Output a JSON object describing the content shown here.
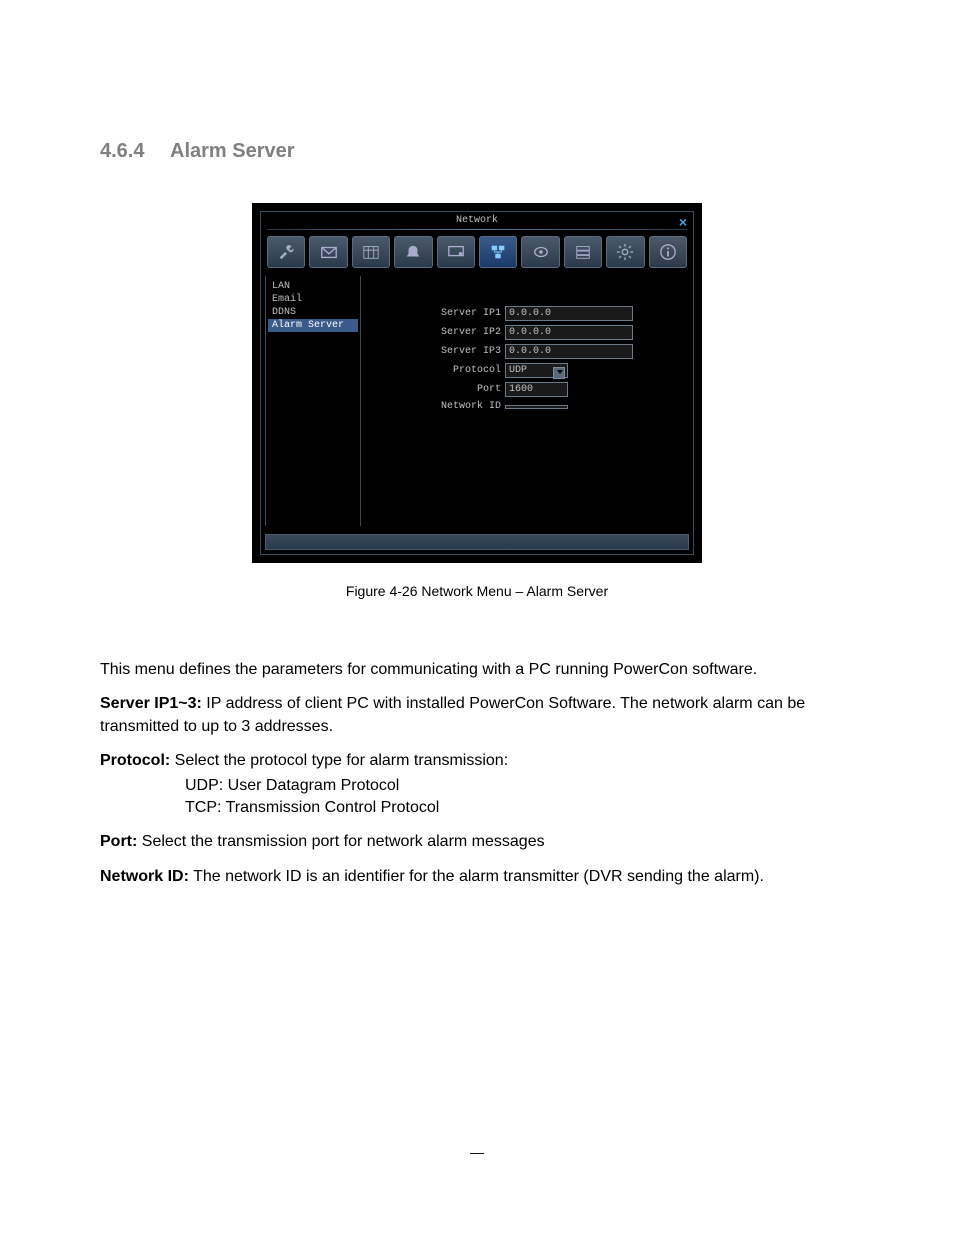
{
  "heading": {
    "num": "4.6.4",
    "title": "Alarm Server"
  },
  "dvr": {
    "window_title": "Network",
    "sidebar": [
      {
        "label": "LAN",
        "selected": false
      },
      {
        "label": "Email",
        "selected": false
      },
      {
        "label": "DDNS",
        "selected": false
      },
      {
        "label": "Alarm Server",
        "selected": true
      }
    ],
    "form": {
      "ip1_label": "Server IP1",
      "ip1_value": "0.0.0.0",
      "ip2_label": "Server IP2",
      "ip2_value": "0.0.0.0",
      "ip3_label": "Server IP3",
      "ip3_value": "0.0.0.0",
      "protocol_label": "Protocol",
      "protocol_value": "UDP",
      "port_label": "Port",
      "port_value": "1600",
      "netid_label": "Network ID",
      "netid_value": ""
    },
    "toolbar_icons": [
      "tools-icon",
      "mail-icon",
      "calendar-icon",
      "alarm-icon",
      "display-icon",
      "network-icon",
      "camera-icon",
      "storage-icon",
      "settings-icon",
      "info-icon"
    ],
    "active_icon_index": 5
  },
  "caption": "Figure 4-26  Network Menu – Alarm Server",
  "text": {
    "intro": "This menu defines the parameters for communicating with a PC running PowerCon software.",
    "serverip_b": "Server IP1~3:",
    "serverip": " IP address of client PC with installed PowerCon Software. The network alarm can be transmitted to up to 3 addresses.",
    "protocol_b": "Protocol:",
    "protocol": " Select the protocol type for alarm transmission:",
    "proto_udp": "UDP: User Datagram Protocol",
    "proto_tcp": "TCP: Transmission Control Protocol",
    "port_b": "Port:",
    "port": " Select the transmission port for network alarm messages",
    "netid_b": "Network ID:",
    "netid": " The network ID is an identifier for the alarm transmitter (DVR sending the alarm)."
  },
  "footer_dash": "—"
}
